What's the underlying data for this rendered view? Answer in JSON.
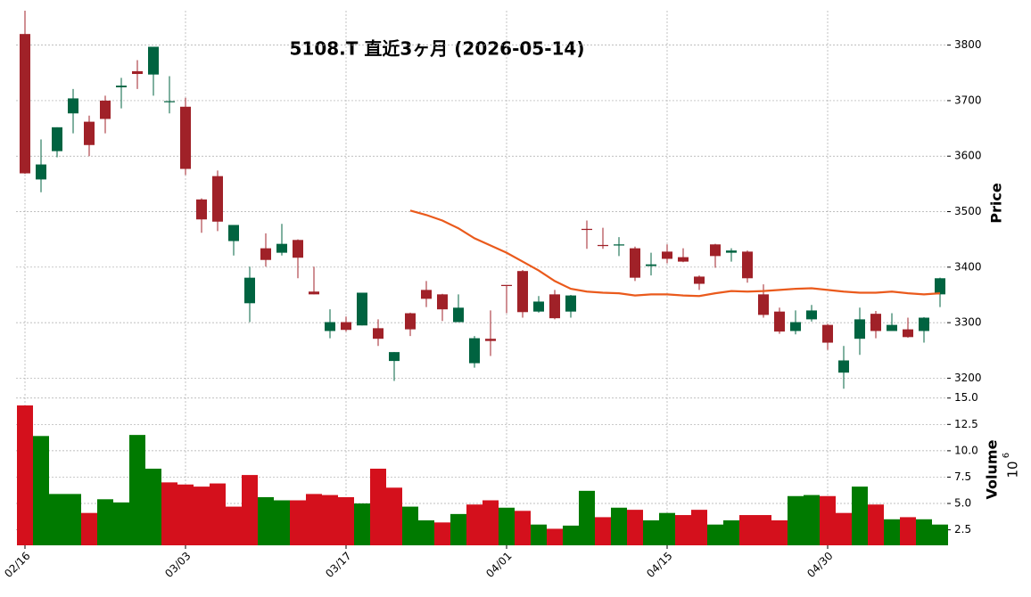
{
  "chart_data": {
    "type": "candlestick",
    "title": "5108.T 直近3ヶ月 (2026-05-14)",
    "categories": [
      "02/16",
      null,
      null,
      null,
      null,
      null,
      null,
      null,
      null,
      null,
      "03/03",
      null,
      null,
      null,
      null,
      null,
      null,
      null,
      null,
      null,
      "03/17",
      null,
      null,
      null,
      null,
      null,
      null,
      null,
      null,
      null,
      "04/01",
      null,
      null,
      null,
      null,
      null,
      null,
      null,
      null,
      null,
      "04/15",
      null,
      null,
      null,
      null,
      null,
      null,
      null,
      null,
      null,
      "04/30",
      null,
      null,
      null,
      null,
      null,
      null,
      null
    ],
    "open": [
      3820,
      3558,
      3609,
      3677,
      3662,
      3700,
      3724,
      3753,
      3747,
      3698,
      3689,
      3522,
      3564,
      3447,
      3335,
      3434,
      3426,
      3449,
      3356,
      3285,
      3301,
      3295,
      3290,
      3231,
      3317,
      3359,
      3351,
      3301,
      3227,
      3271,
      3368,
      3393,
      3320,
      3351,
      3320,
      3469,
      3440,
      3439,
      3434,
      3402,
      3428,
      3418,
      3383,
      3441,
      3426,
      3428,
      3351,
      3320,
      3285,
      3306,
      3296,
      3210,
      3271,
      3316,
      3285,
      3288,
      3285,
      3351
    ],
    "high": [
      3862,
      3630,
      3652,
      3721,
      3673,
      3709,
      3741,
      3773,
      3797,
      3744,
      3705,
      3524,
      3574,
      3476,
      3401,
      3461,
      3478,
      3450,
      3401,
      3324,
      3311,
      3354,
      3306,
      3247,
      3318,
      3375,
      3352,
      3351,
      3276,
      3322,
      3368,
      3395,
      3348,
      3359,
      3350,
      3484,
      3471,
      3454,
      3437,
      3426,
      3441,
      3434,
      3385,
      3442,
      3434,
      3430,
      3369,
      3327,
      3322,
      3332,
      3298,
      3258,
      3327,
      3321,
      3317,
      3309,
      3310,
      3381
    ],
    "low": [
      3568,
      3535,
      3598,
      3641,
      3600,
      3641,
      3686,
      3721,
      3709,
      3677,
      3566,
      3462,
      3465,
      3421,
      3301,
      3401,
      3421,
      3380,
      3351,
      3272,
      3284,
      3295,
      3258,
      3195,
      3276,
      3328,
      3303,
      3301,
      3219,
      3240,
      3317,
      3309,
      3318,
      3306,
      3309,
      3433,
      3433,
      3420,
      3375,
      3385,
      3407,
      3409,
      3359,
      3399,
      3410,
      3372,
      3309,
      3280,
      3279,
      3302,
      3251,
      3181,
      3242,
      3272,
      3290,
      3273,
      3264,
      3328
    ],
    "close": [
      3569,
      3585,
      3652,
      3704,
      3620,
      3667,
      3727,
      3748,
      3797,
      3699,
      3577,
      3486,
      3482,
      3476,
      3381,
      3413,
      3442,
      3417,
      3351,
      3301,
      3287,
      3354,
      3271,
      3247,
      3288,
      3343,
      3324,
      3327,
      3272,
      3267,
      3366,
      3319,
      3338,
      3308,
      3349,
      3467,
      3438,
      3441,
      3381,
      3405,
      3415,
      3410,
      3370,
      3420,
      3430,
      3380,
      3314,
      3284,
      3301,
      3322,
      3264,
      3232,
      3306,
      3285,
      3296,
      3274,
      3309,
      3380
    ],
    "up_color": "#006340",
    "down_color": "#a02128",
    "ma": {
      "color": "#ea5a1c",
      "values": [
        null,
        null,
        null,
        null,
        null,
        null,
        null,
        null,
        null,
        null,
        null,
        null,
        null,
        null,
        null,
        null,
        null,
        null,
        null,
        null,
        null,
        null,
        null,
        null,
        3502,
        3494,
        3484,
        3470,
        3452,
        3439,
        3426,
        3410,
        3394,
        3375,
        3361,
        3356,
        3354,
        3353,
        3349,
        3351,
        3351,
        3349,
        3348,
        3353,
        3357,
        3356,
        3357,
        3359,
        3361,
        3362,
        3359,
        3356,
        3354,
        3354,
        3356,
        3353,
        3351,
        3353
      ]
    },
    "ylabel": "Price",
    "ylim": [
      3175,
      3862
    ],
    "yticks": [
      3200,
      3300,
      3400,
      3500,
      3600,
      3700,
      3800
    ],
    "grid": true,
    "volume": {
      "label": "Volume",
      "scale": {
        "base": "10",
        "exponent": "6"
      },
      "up_color": "#007a00",
      "down_color": "#d4101c",
      "values": [
        14.3,
        11.4,
        5.9,
        5.9,
        4.1,
        5.4,
        5.1,
        11.5,
        8.3,
        7.0,
        6.8,
        6.6,
        6.9,
        4.7,
        7.7,
        5.6,
        5.3,
        5.3,
        5.9,
        5.8,
        5.6,
        5.0,
        8.3,
        6.5,
        4.7,
        3.4,
        3.2,
        4.0,
        4.9,
        5.3,
        4.6,
        4.3,
        3.0,
        2.6,
        2.9,
        6.2,
        3.7,
        4.6,
        4.4,
        3.4,
        4.1,
        3.9,
        4.4,
        3.0,
        3.4,
        3.9,
        3.9,
        3.4,
        5.7,
        5.8,
        5.7,
        4.1,
        6.6,
        4.9,
        3.5,
        3.7,
        3.5,
        3.0
      ],
      "ylim": [
        1.03,
        15.4
      ],
      "yticks": [
        2.5,
        {
          "value": 5,
          "label": "5.0"
        },
        7.5,
        {
          "value": 10,
          "label": "10.0"
        },
        12.5,
        {
          "value": 15,
          "label": "15.0"
        }
      ]
    }
  }
}
